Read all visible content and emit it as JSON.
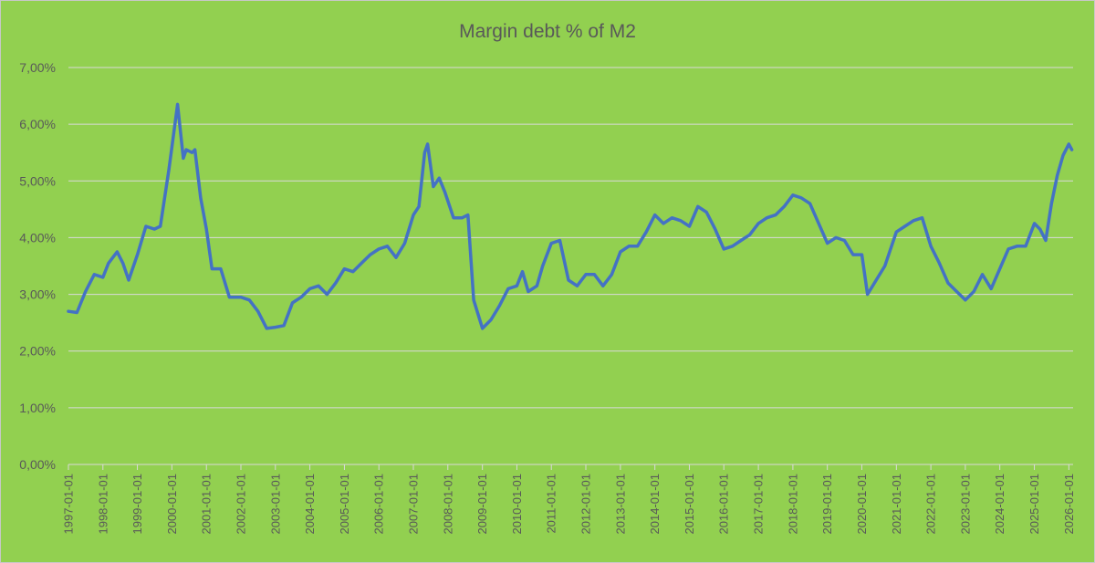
{
  "chart_data": {
    "type": "line",
    "title": "Margin debt % of M2",
    "xlabel": "",
    "ylabel": "",
    "ylim": [
      0,
      7
    ],
    "y_ticks": [
      "0,00%",
      "1,00%",
      "2,00%",
      "3,00%",
      "4,00%",
      "5,00%",
      "6,00%",
      "7,00%"
    ],
    "x_ticks": [
      "1997-01-01",
      "1998-01-01",
      "1999-01-01",
      "2000-01-01",
      "2001-01-01",
      "2002-01-01",
      "2003-01-01",
      "2004-01-01",
      "2005-01-01",
      "2006-01-01",
      "2007-01-01",
      "2008-01-01",
      "2009-01-01",
      "2010-01-01",
      "2011-01-01",
      "2012-01-01",
      "2013-01-01",
      "2014-01-01",
      "2015-01-01",
      "2016-01-01",
      "2017-01-01",
      "2018-01-01",
      "2019-01-01",
      "2020-01-01",
      "2021-01-01",
      "2022-01-01",
      "2023-01-01",
      "2024-01-01",
      "2025-01-01",
      "2026-01-01"
    ],
    "grid": true,
    "legend": "none",
    "colors": {
      "background": "#92d050",
      "line": "#4472c4",
      "grid": "#d9d9d9",
      "text": "#595959"
    },
    "series": [
      {
        "points": [
          [
            "1997-01-01",
            2.7
          ],
          [
            "1997-04-01",
            2.68
          ],
          [
            "1997-07-01",
            3.05
          ],
          [
            "1997-10-01",
            3.35
          ],
          [
            "1998-01-01",
            3.3
          ],
          [
            "1998-03-01",
            3.55
          ],
          [
            "1998-06-01",
            3.75
          ],
          [
            "1998-08-01",
            3.55
          ],
          [
            "1998-10-01",
            3.25
          ],
          [
            "1999-01-01",
            3.7
          ],
          [
            "1999-04-01",
            4.2
          ],
          [
            "1999-07-01",
            4.15
          ],
          [
            "1999-09-01",
            4.2
          ],
          [
            "1999-12-01",
            5.2
          ],
          [
            "2000-03-01",
            6.35
          ],
          [
            "2000-05-01",
            5.4
          ],
          [
            "2000-06-01",
            5.55
          ],
          [
            "2000-08-01",
            5.5
          ],
          [
            "2000-09-01",
            5.55
          ],
          [
            "2000-11-01",
            4.7
          ],
          [
            "2001-01-01",
            4.15
          ],
          [
            "2001-03-01",
            3.45
          ],
          [
            "2001-06-01",
            3.45
          ],
          [
            "2001-09-01",
            2.95
          ],
          [
            "2002-01-01",
            2.95
          ],
          [
            "2002-04-01",
            2.9
          ],
          [
            "2002-07-01",
            2.7
          ],
          [
            "2002-10-01",
            2.4
          ],
          [
            "2003-01-01",
            2.42
          ],
          [
            "2003-04-01",
            2.45
          ],
          [
            "2003-07-01",
            2.85
          ],
          [
            "2003-10-01",
            2.95
          ],
          [
            "2004-01-01",
            3.1
          ],
          [
            "2004-04-01",
            3.15
          ],
          [
            "2004-07-01",
            3.0
          ],
          [
            "2004-10-01",
            3.2
          ],
          [
            "2005-01-01",
            3.45
          ],
          [
            "2005-04-01",
            3.4
          ],
          [
            "2005-07-01",
            3.55
          ],
          [
            "2005-10-01",
            3.7
          ],
          [
            "2006-01-01",
            3.8
          ],
          [
            "2006-04-01",
            3.85
          ],
          [
            "2006-07-01",
            3.65
          ],
          [
            "2006-10-01",
            3.9
          ],
          [
            "2007-01-01",
            4.4
          ],
          [
            "2007-03-01",
            4.55
          ],
          [
            "2007-05-01",
            5.5
          ],
          [
            "2007-06-01",
            5.65
          ],
          [
            "2007-08-01",
            4.9
          ],
          [
            "2007-10-01",
            5.05
          ],
          [
            "2007-12-01",
            4.8
          ],
          [
            "2008-03-01",
            4.35
          ],
          [
            "2008-06-01",
            4.35
          ],
          [
            "2008-08-01",
            4.4
          ],
          [
            "2008-10-01",
            2.9
          ],
          [
            "2009-01-01",
            2.4
          ],
          [
            "2009-04-01",
            2.55
          ],
          [
            "2009-07-01",
            2.8
          ],
          [
            "2009-10-01",
            3.1
          ],
          [
            "2010-01-01",
            3.15
          ],
          [
            "2010-03-01",
            3.4
          ],
          [
            "2010-05-01",
            3.05
          ],
          [
            "2010-08-01",
            3.15
          ],
          [
            "2010-10-01",
            3.5
          ],
          [
            "2011-01-01",
            3.9
          ],
          [
            "2011-04-01",
            3.95
          ],
          [
            "2011-07-01",
            3.25
          ],
          [
            "2011-10-01",
            3.15
          ],
          [
            "2012-01-01",
            3.35
          ],
          [
            "2012-04-01",
            3.35
          ],
          [
            "2012-07-01",
            3.15
          ],
          [
            "2012-10-01",
            3.35
          ],
          [
            "2013-01-01",
            3.75
          ],
          [
            "2013-04-01",
            3.85
          ],
          [
            "2013-07-01",
            3.85
          ],
          [
            "2013-10-01",
            4.1
          ],
          [
            "2014-01-01",
            4.4
          ],
          [
            "2014-04-01",
            4.25
          ],
          [
            "2014-07-01",
            4.35
          ],
          [
            "2014-10-01",
            4.3
          ],
          [
            "2015-01-01",
            4.2
          ],
          [
            "2015-04-01",
            4.55
          ],
          [
            "2015-07-01",
            4.45
          ],
          [
            "2015-10-01",
            4.15
          ],
          [
            "2016-01-01",
            3.8
          ],
          [
            "2016-04-01",
            3.85
          ],
          [
            "2016-07-01",
            3.95
          ],
          [
            "2016-10-01",
            4.05
          ],
          [
            "2017-01-01",
            4.25
          ],
          [
            "2017-04-01",
            4.35
          ],
          [
            "2017-07-01",
            4.4
          ],
          [
            "2017-10-01",
            4.55
          ],
          [
            "2018-01-01",
            4.75
          ],
          [
            "2018-04-01",
            4.7
          ],
          [
            "2018-07-01",
            4.6
          ],
          [
            "2018-10-01",
            4.25
          ],
          [
            "2019-01-01",
            3.9
          ],
          [
            "2019-04-01",
            4.0
          ],
          [
            "2019-07-01",
            3.95
          ],
          [
            "2019-10-01",
            3.7
          ],
          [
            "2020-01-01",
            3.7
          ],
          [
            "2020-03-01",
            3.0
          ],
          [
            "2020-06-01",
            3.25
          ],
          [
            "2020-09-01",
            3.5
          ],
          [
            "2021-01-01",
            4.1
          ],
          [
            "2021-04-01",
            4.2
          ],
          [
            "2021-07-01",
            4.3
          ],
          [
            "2021-10-01",
            4.35
          ],
          [
            "2022-01-01",
            3.85
          ],
          [
            "2022-04-01",
            3.55
          ],
          [
            "2022-07-01",
            3.2
          ],
          [
            "2022-10-01",
            3.05
          ],
          [
            "2023-01-01",
            2.9
          ],
          [
            "2023-04-01",
            3.05
          ],
          [
            "2023-07-01",
            3.35
          ],
          [
            "2023-10-01",
            3.1
          ],
          [
            "2024-01-01",
            3.45
          ],
          [
            "2024-04-01",
            3.8
          ],
          [
            "2024-07-01",
            3.85
          ],
          [
            "2024-10-01",
            3.85
          ],
          [
            "2025-01-01",
            4.25
          ],
          [
            "2025-03-01",
            4.15
          ],
          [
            "2025-05-01",
            3.95
          ],
          [
            "2025-07-01",
            4.6
          ],
          [
            "2025-09-01",
            5.1
          ],
          [
            "2025-11-01",
            5.45
          ],
          [
            "2026-01-01",
            5.65
          ],
          [
            "2026-02-01",
            5.55
          ]
        ]
      }
    ]
  }
}
